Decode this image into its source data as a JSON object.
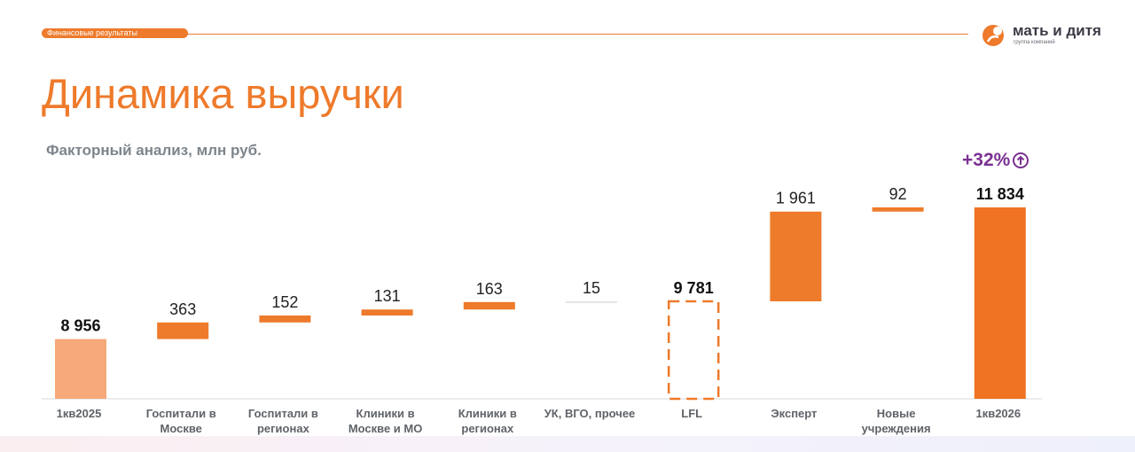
{
  "header": {
    "section": "Финансовые результаты",
    "logo_name": "мать и дитя",
    "logo_sub": "группа компаний"
  },
  "title": "Динамика выручки",
  "subtitle": "Факторный анализ, млн руб.",
  "growth_badge": "+32%",
  "colors": {
    "accent": "#ee7a2b",
    "start_bar": "#f5a97a",
    "delta_bar": "#ee7a2b",
    "total_bar": "#ef7322",
    "growth": "#7b3192"
  },
  "chart_data": {
    "type": "bar",
    "subtype": "waterfall",
    "categories": [
      "1кв2025",
      "Госпитали в Москве",
      "Госпитали в регионах",
      "Клиники в Москве и МО",
      "Клиники в регионах",
      "УК, ВГО, прочее",
      "LFL",
      "Эксперт",
      "Новые учреждения",
      "1кв2026"
    ],
    "category_lines": [
      [
        "1кв2025"
      ],
      [
        "Госпитали в",
        "Москве"
      ],
      [
        "Госпитали в",
        "регионах"
      ],
      [
        "Клиники в",
        "Москве и МО"
      ],
      [
        "Клиники в",
        "регионах"
      ],
      [
        "УК, ВГО, прочее"
      ],
      [
        "LFL"
      ],
      [
        "Эксперт"
      ],
      [
        "Новые",
        "учреждения"
      ],
      [
        "1кв2026"
      ]
    ],
    "values": [
      8956,
      363,
      152,
      131,
      163,
      15,
      9781,
      1961,
      92,
      11834
    ],
    "value_labels": [
      "8 956",
      "363",
      "152",
      "131",
      "163",
      "15",
      "9 781",
      "1 961",
      "92",
      "11 834"
    ],
    "kinds": [
      "total",
      "delta",
      "delta",
      "delta",
      "delta",
      "delta",
      "subtotal",
      "delta",
      "delta",
      "total"
    ],
    "bold_labels": [
      true,
      false,
      false,
      false,
      false,
      false,
      true,
      false,
      false,
      true
    ],
    "ylim": [
      0,
      11834
    ]
  }
}
